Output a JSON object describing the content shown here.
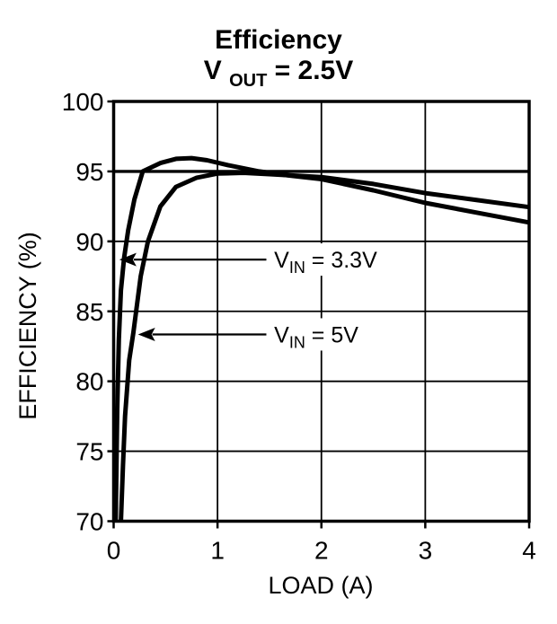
{
  "title": {
    "line1": "Efficiency",
    "line2": {
      "prefix": "V",
      "sub": "OUT",
      "rest": " = 2.5V"
    }
  },
  "colors": {
    "foreground": "#000000",
    "background": "#ffffff"
  },
  "chart_data": {
    "type": "line",
    "title": "Efficiency",
    "subtitle": "VOUT = 2.5V",
    "xlabel": "LOAD (A)",
    "ylabel": "EFFICIENCY (%)",
    "xlim": [
      0,
      4
    ],
    "ylim": [
      70,
      100
    ],
    "x_ticks": [
      0,
      1,
      2,
      3,
      4
    ],
    "y_ticks": [
      70,
      75,
      80,
      85,
      90,
      95,
      100
    ],
    "grid": true,
    "legend_position": "none",
    "series": [
      {
        "name": "VIN = 3.3V",
        "points": [
          [
            0.02,
            70
          ],
          [
            0.035,
            78
          ],
          [
            0.05,
            83
          ],
          [
            0.07,
            86.5
          ],
          [
            0.1,
            88.8
          ],
          [
            0.14,
            90.8
          ],
          [
            0.2,
            93.0
          ],
          [
            0.28,
            95.0
          ],
          [
            0.45,
            95.6
          ],
          [
            0.6,
            95.9
          ],
          [
            0.75,
            95.95
          ],
          [
            0.9,
            95.8
          ],
          [
            1.1,
            95.45
          ],
          [
            1.4,
            95.0
          ],
          [
            1.7,
            94.7
          ],
          [
            2.0,
            94.45
          ],
          [
            2.5,
            93.65
          ],
          [
            3.0,
            92.75
          ],
          [
            3.5,
            92.05
          ],
          [
            4.0,
            91.35
          ]
        ]
      },
      {
        "name": "VIN = 5V",
        "points": [
          [
            0.07,
            70
          ],
          [
            0.09,
            74
          ],
          [
            0.11,
            77.5
          ],
          [
            0.15,
            81.5
          ],
          [
            0.19,
            83.5
          ],
          [
            0.26,
            87.5
          ],
          [
            0.33,
            90.0
          ],
          [
            0.45,
            92.5
          ],
          [
            0.6,
            93.9
          ],
          [
            0.8,
            94.55
          ],
          [
            1.0,
            94.85
          ],
          [
            1.25,
            94.9
          ],
          [
            1.5,
            94.8
          ],
          [
            1.75,
            94.7
          ],
          [
            2.0,
            94.6
          ],
          [
            2.5,
            94.1
          ],
          [
            3.0,
            93.45
          ],
          [
            3.5,
            92.95
          ],
          [
            4.0,
            92.45
          ]
        ]
      }
    ],
    "annotations": [
      {
        "label": "VIN = 3.3V",
        "parts": {
          "prefix": "V",
          "sub": "IN",
          "rest": " = 3.3V"
        },
        "y": 88.7,
        "arrow_tip_x": 0.055,
        "line_end_x": 1.47,
        "text_x": 1.545,
        "bg_width": 138
      },
      {
        "label": "VIN = 5V",
        "parts": {
          "prefix": "V",
          "sub": "IN",
          "rest": " = 5V"
        },
        "y": 83.35,
        "arrow_tip_x": 0.235,
        "line_end_x": 1.47,
        "text_x": 1.545,
        "bg_width": 114
      }
    ]
  }
}
